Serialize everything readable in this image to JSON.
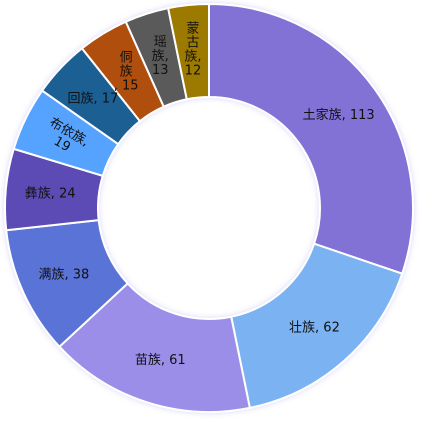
{
  "chart_data": {
    "type": "pie",
    "variant": "donut",
    "categories": [
      "土家族",
      "壮族",
      "苗族",
      "满族",
      "彝族",
      "布依族",
      "回族",
      "侗族",
      "瑶族",
      "蒙古族"
    ],
    "values": [
      113,
      62,
      61,
      38,
      24,
      19,
      17,
      15,
      13,
      12
    ],
    "colors": [
      "#8272d6",
      "#7ab2f2",
      "#9b8ee8",
      "#5a73d6",
      "#5b4bb5",
      "#56a2ff",
      "#1f5e92",
      "#b04f08",
      "#5a5a5a",
      "#9c7a00"
    ],
    "labels": [
      "土家族, 113",
      "壮族, 62",
      "苗族, 61",
      "满族, 38",
      "彝族, 24",
      "布依族, 19",
      "回族, 17",
      "侗族, 15",
      "瑶族, 13",
      "蒙古族, 12"
    ]
  }
}
